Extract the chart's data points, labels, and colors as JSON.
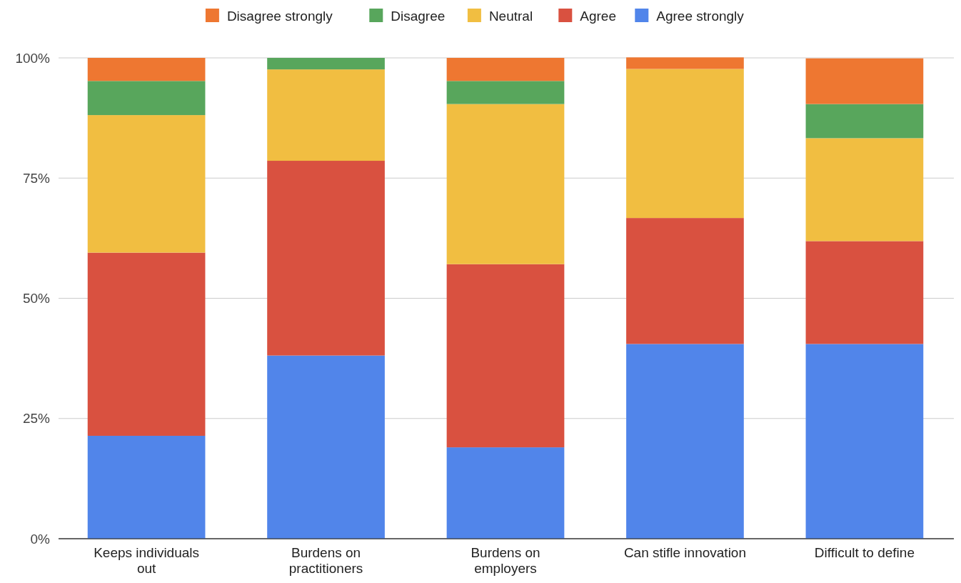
{
  "chart_data": {
    "type": "bar",
    "stacked": true,
    "categories": [
      "Keeps individuals out",
      "Burdens on practitioners",
      "Burdens on employers",
      "Can stifle innovation",
      "Difficult to define"
    ],
    "series": [
      {
        "name": "Agree strongly",
        "color": "#5185ea",
        "values": [
          21.4,
          38.1,
          19.0,
          40.5,
          40.5
        ]
      },
      {
        "name": "Agree",
        "color": "#d95140",
        "values": [
          38.1,
          40.5,
          38.1,
          26.2,
          21.4
        ]
      },
      {
        "name": "Neutral",
        "color": "#f1be41",
        "values": [
          28.6,
          19.0,
          33.3,
          31.0,
          21.4
        ]
      },
      {
        "name": "Disagree",
        "color": "#58a65c",
        "values": [
          7.1,
          2.4,
          4.8,
          0,
          7.1
        ]
      },
      {
        "name": "Disagree strongly",
        "color": "#ee7731",
        "values": [
          4.8,
          0,
          4.8,
          2.4,
          9.5
        ]
      }
    ],
    "ylim": [
      0,
      100
    ],
    "yticks": [
      {
        "value": 0,
        "label": "0%"
      },
      {
        "value": 25,
        "label": "25%"
      },
      {
        "value": 50,
        "label": "50%"
      },
      {
        "value": 75,
        "label": "75%"
      },
      {
        "value": 100,
        "label": "100%"
      }
    ],
    "grid": "y",
    "legend": "top"
  }
}
